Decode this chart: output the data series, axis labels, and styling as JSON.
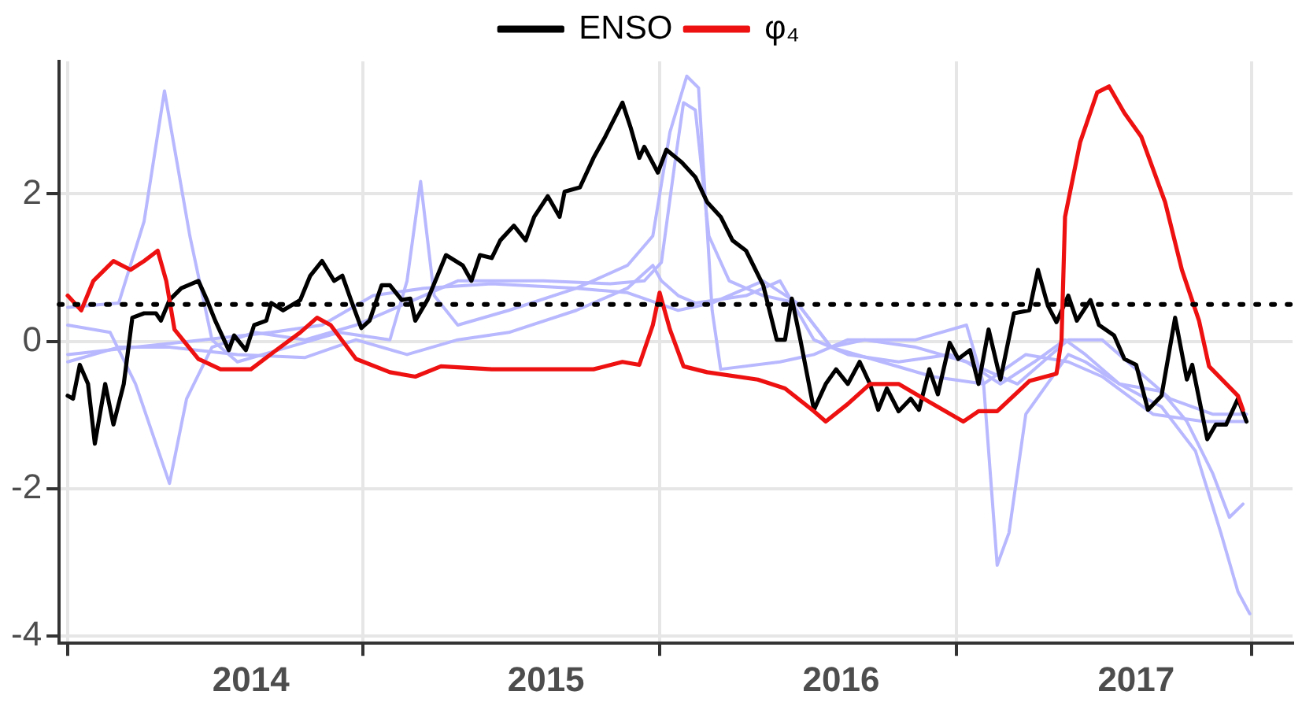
{
  "chart_data": {
    "type": "line",
    "xlim": [
      2013.35,
      2017.53
    ],
    "ylim": [
      -4.1,
      3.8
    ],
    "xticks": [
      {
        "value": 2013.38,
        "label": null
      },
      2014,
      {
        "value": 2014.38,
        "label": null
      },
      2015,
      {
        "value": 2015.385,
        "label": null
      },
      2016,
      {
        "value": 2016.39,
        "label": null
      },
      2017,
      {
        "value": 2017.39,
        "label": null
      }
    ],
    "yticks": [
      -4,
      -2,
      0,
      2
    ],
    "grid": true,
    "legend": "top",
    "line_style": "solid",
    "marker": "none",
    "ref_lines": [
      {
        "axis": "y",
        "value": 0.5,
        "label": null,
        "color": "#000000",
        "line_style": "dotted"
      }
    ],
    "series": [
      {
        "color": "#b8b8ff",
        "x": [
          2013.379,
          2013.552,
          2013.638,
          2013.707,
          2013.793,
          2013.868,
          2013.954,
          2014.126,
          2014.299,
          2014.471,
          2014.529,
          2014.575,
          2014.621,
          2014.701,
          2014.874,
          2015.103,
          2015.276,
          2015.362,
          2015.42,
          2015.477,
          2015.517,
          2015.563,
          2015.592,
          2015.793,
          2015.908,
          2016.023,
          2016.253,
          2016.425,
          2016.483,
          2016.529,
          2016.569,
          2016.626,
          2016.77,
          2016.828,
          2016.943,
          2017.086,
          2017.172,
          2017.259,
          2017.316,
          2017.362
        ],
        "values": [
          0.46,
          0.52,
          1.63,
          3.4,
          1.43,
          0.02,
          -0.28,
          -0.08,
          0.12,
          0.02,
          0.82,
          2.17,
          0.62,
          0.22,
          0.42,
          0.72,
          1.03,
          1.43,
          2.84,
          3.6,
          3.44,
          0.42,
          -0.38,
          -0.28,
          -0.18,
          0.02,
          0.02,
          0.22,
          -0.58,
          -3.04,
          -2.6,
          -0.99,
          -0.18,
          -0.28,
          -0.58,
          -0.68,
          -1.09,
          -1.79,
          -2.39,
          -2.21
        ]
      },
      {
        "color": "#b8b8ff",
        "x": [
          2013.379,
          2013.523,
          2013.609,
          2013.678,
          2013.724,
          2013.782,
          2013.868,
          2014.011,
          2014.184,
          2014.356,
          2014.529,
          2014.701,
          2014.989,
          2015.218,
          2015.333,
          2015.391,
          2015.437,
          2015.466,
          2015.506,
          2015.552,
          2015.621,
          2015.736,
          2015.851,
          2015.966,
          2016.08,
          2016.253,
          2016.425,
          2016.54,
          2016.655,
          2016.759,
          2016.828,
          2016.943,
          2017.086,
          2017.201,
          2017.287,
          2017.345,
          2017.385
        ],
        "values": [
          0.22,
          0.12,
          -0.58,
          -1.39,
          -1.93,
          -0.78,
          -0.08,
          0.12,
          0.02,
          0.22,
          0.52,
          0.82,
          0.82,
          0.78,
          0.82,
          1.07,
          2.43,
          3.24,
          3.14,
          1.43,
          0.82,
          0.62,
          0.52,
          -0.08,
          0.02,
          -0.08,
          -0.28,
          -0.58,
          -0.28,
          0.02,
          -0.18,
          -0.58,
          -0.89,
          -1.49,
          -2.6,
          -3.4,
          -3.7
        ]
      },
      {
        "color": "#b8b8ff",
        "x": [
          2013.379,
          2013.609,
          2013.839,
          2014.069,
          2014.241,
          2014.414,
          2014.586,
          2014.816,
          2015.103,
          2015.276,
          2015.448,
          2015.563,
          2015.736,
          2015.851,
          2015.966,
          2016.138,
          2016.31,
          2016.483,
          2016.626,
          2016.77,
          2016.885,
          2017.057,
          2017.23,
          2017.374
        ],
        "values": [
          -0.18,
          -0.08,
          0.02,
          0.12,
          0.22,
          0.62,
          0.72,
          0.78,
          0.72,
          0.66,
          0.42,
          0.52,
          0.82,
          0.52,
          -0.08,
          -0.28,
          -0.48,
          -0.58,
          -0.18,
          -0.28,
          -0.48,
          -0.99,
          -1.09,
          -1.09
        ]
      },
      {
        "color": "#b8b8ff",
        "x": [
          2013.379,
          2013.552,
          2013.724,
          2013.954,
          2014.184,
          2014.356,
          2014.529,
          2014.701,
          2014.874,
          2015.103,
          2015.276,
          2015.362,
          2015.391,
          2015.448,
          2015.506,
          2015.678,
          2015.793,
          2015.908,
          2016.023,
          2016.195,
          2016.368,
          2016.483,
          2016.598,
          2016.684,
          2016.77,
          2016.885,
          2017.0,
          2017.115,
          2017.259,
          2017.374
        ],
        "values": [
          -0.28,
          -0.08,
          -0.08,
          -0.18,
          -0.22,
          0.02,
          -0.18,
          0.02,
          0.12,
          0.42,
          0.72,
          1.03,
          0.82,
          0.62,
          0.52,
          0.62,
          0.82,
          0.02,
          -0.18,
          -0.28,
          -0.18,
          -0.38,
          -0.58,
          -0.28,
          0.02,
          0.02,
          -0.38,
          -0.78,
          -0.99,
          -0.99
        ]
      },
      {
        "name": "ENSO",
        "color": "#000000",
        "x": [
          2013.379,
          2013.397,
          2013.42,
          2013.448,
          2013.471,
          2013.506,
          2013.534,
          2013.569,
          2013.598,
          2013.638,
          2013.678,
          2013.695,
          2013.724,
          2013.764,
          2013.822,
          2013.851,
          2013.879,
          2013.925,
          2013.943,
          2013.983,
          2014.011,
          2014.052,
          2014.069,
          2014.109,
          2014.167,
          2014.201,
          2014.241,
          2014.282,
          2014.31,
          2014.339,
          2014.374,
          2014.402,
          2014.443,
          2014.471,
          2014.511,
          2014.54,
          2014.557,
          2014.598,
          2014.661,
          2014.718,
          2014.747,
          2014.776,
          2014.816,
          2014.845,
          2014.891,
          2014.931,
          2014.96,
          2015.006,
          2015.046,
          2015.063,
          2015.115,
          2015.161,
          2015.201,
          2015.259,
          2015.287,
          2015.316,
          2015.333,
          2015.379,
          2015.408,
          2015.46,
          2015.506,
          2015.546,
          2015.592,
          2015.632,
          2015.678,
          2015.736,
          2015.782,
          2015.81,
          2015.833,
          2015.862,
          2015.908,
          2015.948,
          2015.983,
          2016.023,
          2016.063,
          2016.098,
          2016.126,
          2016.155,
          2016.195,
          2016.236,
          2016.264,
          2016.299,
          2016.328,
          2016.368,
          2016.397,
          2016.437,
          2016.466,
          2016.5,
          2016.54,
          2016.586,
          2016.638,
          2016.667,
          2016.701,
          2016.73,
          2016.77,
          2016.799,
          2016.845,
          2016.874,
          2016.925,
          2016.96,
          2017.0,
          2017.04,
          2017.086,
          2017.132,
          2017.172,
          2017.19,
          2017.241,
          2017.27,
          2017.305,
          2017.345,
          2017.374
        ],
        "values": [
          -0.74,
          -0.78,
          -0.32,
          -0.58,
          -1.39,
          -0.58,
          -1.13,
          -0.58,
          0.32,
          0.38,
          0.38,
          0.28,
          0.56,
          0.72,
          0.82,
          0.56,
          0.28,
          -0.12,
          0.08,
          -0.12,
          0.22,
          0.28,
          0.52,
          0.42,
          0.56,
          0.89,
          1.09,
          0.82,
          0.89,
          0.56,
          0.18,
          0.28,
          0.76,
          0.76,
          0.56,
          0.58,
          0.28,
          0.56,
          1.17,
          1.03,
          0.82,
          1.17,
          1.13,
          1.37,
          1.57,
          1.37,
          1.69,
          1.97,
          1.69,
          2.03,
          2.09,
          2.49,
          2.78,
          3.24,
          2.9,
          2.49,
          2.64,
          2.29,
          2.6,
          2.43,
          2.23,
          1.89,
          1.69,
          1.37,
          1.23,
          0.76,
          0.02,
          0.02,
          0.58,
          0.02,
          -0.93,
          -0.58,
          -0.38,
          -0.58,
          -0.28,
          -0.58,
          -0.93,
          -0.64,
          -0.95,
          -0.78,
          -0.93,
          -0.38,
          -0.72,
          -0.02,
          -0.24,
          -0.12,
          -0.58,
          0.16,
          -0.52,
          0.38,
          0.42,
          0.97,
          0.48,
          0.26,
          0.62,
          0.28,
          0.56,
          0.22,
          0.08,
          -0.24,
          -0.32,
          -0.93,
          -0.74,
          0.32,
          -0.52,
          -0.32,
          -1.33,
          -1.13,
          -1.13,
          -0.78,
          -1.09
        ]
      },
      {
        "name": "φ₄",
        "color": "#ee1111",
        "x": [
          2013.379,
          2013.425,
          2013.466,
          2013.534,
          2013.592,
          2013.638,
          2013.684,
          2013.713,
          2013.741,
          2013.822,
          2013.897,
          2014.0,
          2014.086,
          2014.167,
          2014.224,
          2014.27,
          2014.356,
          2014.471,
          2014.557,
          2014.644,
          2014.816,
          2015.161,
          2015.259,
          2015.316,
          2015.362,
          2015.385,
          2015.42,
          2015.466,
          2015.546,
          2015.718,
          2015.81,
          2015.908,
          2015.948,
          2016.023,
          2016.098,
          2016.195,
          2016.31,
          2016.414,
          2016.466,
          2016.529,
          2016.638,
          2016.73,
          2016.747,
          2016.759,
          2016.81,
          2016.868,
          2016.908,
          2016.96,
          2017.017,
          2017.098,
          2017.155,
          2017.213,
          2017.247,
          2017.345,
          2017.362
        ],
        "values": [
          0.62,
          0.42,
          0.82,
          1.09,
          0.97,
          1.09,
          1.23,
          0.82,
          0.16,
          -0.24,
          -0.38,
          -0.38,
          -0.12,
          0.12,
          0.32,
          0.22,
          -0.24,
          -0.42,
          -0.48,
          -0.34,
          -0.38,
          -0.38,
          -0.28,
          -0.32,
          0.22,
          0.66,
          0.16,
          -0.34,
          -0.42,
          -0.52,
          -0.64,
          -0.95,
          -1.09,
          -0.85,
          -0.58,
          -0.58,
          -0.85,
          -1.09,
          -0.95,
          -0.95,
          -0.54,
          -0.44,
          0.02,
          1.69,
          2.7,
          3.38,
          3.46,
          3.1,
          2.78,
          1.89,
          0.97,
          0.28,
          -0.34,
          -0.74,
          -0.93
        ]
      }
    ]
  }
}
